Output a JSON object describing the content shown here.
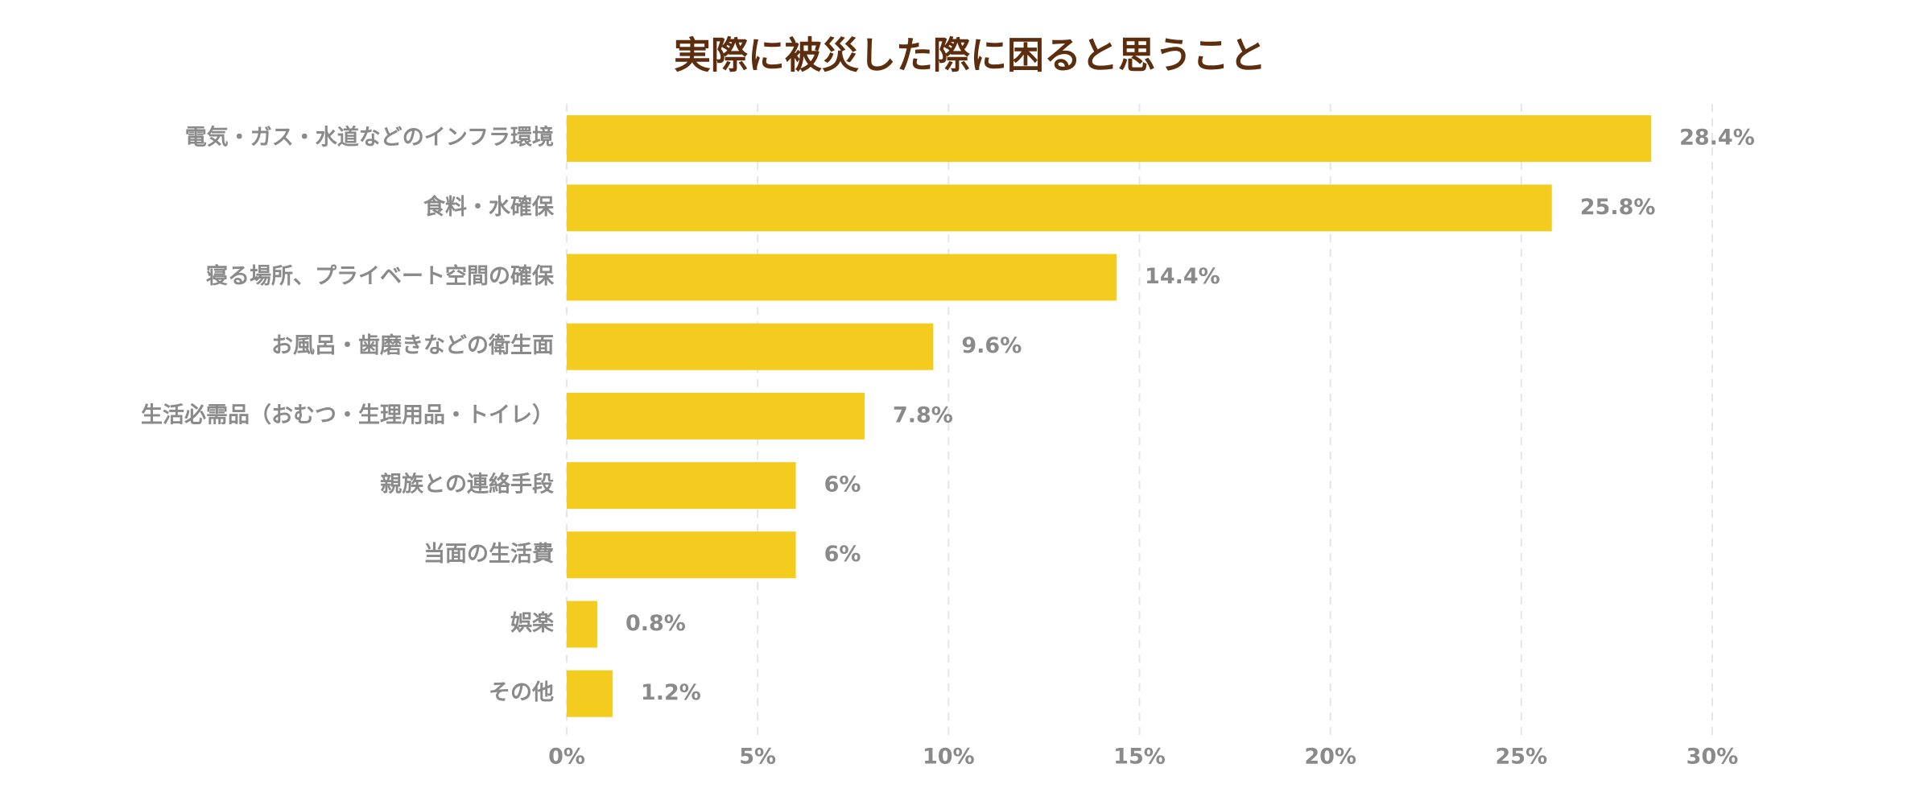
{
  "chart_data": {
    "type": "bar",
    "orientation": "horizontal",
    "title": "実際に被災した際に困ると思うこと",
    "categories": [
      "電気・ガス・水道などのインフラ環境",
      "食料・水確保",
      "寝る場所、プライベート空間の確保",
      "お風呂・歯磨きなどの衛生面",
      "生活必需品（おむつ・生理用品・トイレ）",
      "親族との連絡手段",
      "当面の生活費",
      "娯楽",
      "その他"
    ],
    "values": [
      28.4,
      25.8,
      14.4,
      9.6,
      7.8,
      6,
      6,
      0.8,
      1.2
    ],
    "value_labels": [
      "28.4%",
      "25.8%",
      "14.4%",
      "9.6%",
      "7.8%",
      "6%",
      "6%",
      "0.8%",
      "1.2%"
    ],
    "color": "#f3cc1f",
    "xlim": [
      0,
      30
    ],
    "xticks": [
      {
        "value": 0,
        "label": "0%"
      },
      {
        "value": 5,
        "label": "5%"
      },
      {
        "value": 10,
        "label": "10%"
      },
      {
        "value": 15,
        "label": "15%"
      },
      {
        "value": 20,
        "label": "20%"
      },
      {
        "value": 25,
        "label": "25%"
      },
      {
        "value": 30,
        "label": "30%"
      }
    ],
    "grid": true
  }
}
